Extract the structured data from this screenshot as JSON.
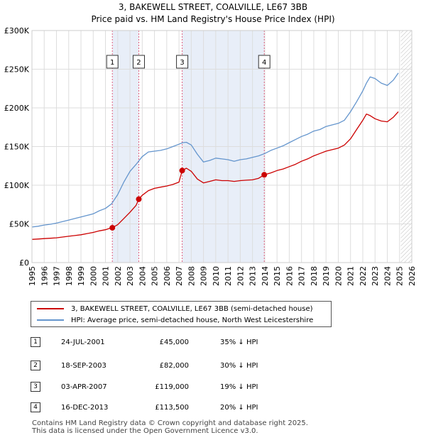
{
  "title_line1": "3, BAKEWELL STREET, COALVILLE, LE67 3BB",
  "title_line2": "Price paid vs. HM Land Registry's House Price Index (HPI)",
  "chart_data": {
    "type": "line",
    "xlim": [
      1995,
      2026
    ],
    "ylim": [
      0,
      300000
    ],
    "y_ticks": [
      0,
      50000,
      100000,
      150000,
      200000,
      250000,
      300000
    ],
    "y_tick_labels": [
      "£0",
      "£50K",
      "£100K",
      "£150K",
      "£200K",
      "£250K",
      "£300K"
    ],
    "x_ticks": [
      1995,
      1996,
      1997,
      1998,
      1999,
      2000,
      2001,
      2002,
      2003,
      2004,
      2005,
      2006,
      2007,
      2008,
      2009,
      2010,
      2011,
      2012,
      2013,
      2014,
      2015,
      2016,
      2017,
      2018,
      2019,
      2020,
      2021,
      2022,
      2023,
      2024,
      2025,
      2026
    ],
    "grid": true,
    "future_start": 2025.1,
    "series": [
      {
        "name": "HPI: Average price, semi-detached house, North West Leicestershire",
        "color": "#6495cd",
        "x": [
          1995.0,
          1995.5,
          1996.0,
          1996.5,
          1997.0,
          1997.5,
          1998.0,
          1998.5,
          1999.0,
          1999.5,
          2000.0,
          2000.5,
          2001.0,
          2001.5,
          2002.0,
          2002.5,
          2003.0,
          2003.5,
          2004.0,
          2004.5,
          2005.0,
          2005.5,
          2006.0,
          2006.5,
          2007.0,
          2007.3,
          2007.6,
          2008.0,
          2008.5,
          2009.0,
          2009.5,
          2010.0,
          2010.5,
          2011.0,
          2011.5,
          2012.0,
          2012.5,
          2013.0,
          2013.5,
          2014.0,
          2014.5,
          2015.0,
          2015.5,
          2016.0,
          2016.5,
          2017.0,
          2017.5,
          2018.0,
          2018.5,
          2019.0,
          2019.5,
          2020.0,
          2020.5,
          2021.0,
          2021.5,
          2022.0,
          2022.3,
          2022.6,
          2023.0,
          2023.5,
          2024.0,
          2024.5,
          2024.9
        ],
        "values": [
          46000,
          47000,
          48500,
          49500,
          51000,
          53000,
          55000,
          57000,
          59000,
          61000,
          63000,
          67000,
          70000,
          76000,
          88000,
          104000,
          118000,
          127000,
          137000,
          143000,
          144000,
          145000,
          147000,
          150000,
          153000,
          155000,
          155500,
          152000,
          140000,
          130000,
          132000,
          135000,
          134000,
          133000,
          131000,
          133000,
          134000,
          136000,
          138000,
          141000,
          145000,
          148000,
          151000,
          155000,
          159000,
          163000,
          166000,
          170000,
          172000,
          176000,
          178000,
          180000,
          184000,
          195000,
          208000,
          222000,
          232000,
          240000,
          238000,
          232000,
          229000,
          236000,
          245000
        ]
      },
      {
        "name": "3, BAKEWELL STREET, COALVILLE, LE67 3BB (semi-detached house)",
        "color": "#cc0000",
        "x": [
          1995.0,
          1995.5,
          1996.0,
          1996.5,
          1997.0,
          1997.5,
          1998.0,
          1998.5,
          1999.0,
          1999.5,
          2000.0,
          2000.5,
          2001.0,
          2001.3,
          2001.56,
          2002.0,
          2002.5,
          2003.0,
          2003.5,
          2003.72,
          2004.0,
          2004.5,
          2005.0,
          2005.5,
          2006.0,
          2006.5,
          2007.0,
          2007.26,
          2007.6,
          2008.0,
          2008.5,
          2009.0,
          2009.5,
          2010.0,
          2010.5,
          2011.0,
          2011.5,
          2012.0,
          2012.5,
          2013.0,
          2013.5,
          2013.96,
          2014.5,
          2015.0,
          2015.5,
          2016.0,
          2016.5,
          2017.0,
          2017.5,
          2018.0,
          2018.5,
          2019.0,
          2019.5,
          2020.0,
          2020.5,
          2021.0,
          2021.5,
          2022.0,
          2022.3,
          2022.6,
          2023.0,
          2023.5,
          2024.0,
          2024.5,
          2024.9
        ],
        "values": [
          30000,
          30500,
          31000,
          31500,
          32000,
          33000,
          34000,
          35000,
          36000,
          37500,
          39000,
          41000,
          42500,
          44000,
          45000,
          49000,
          57000,
          65000,
          74000,
          82000,
          87000,
          93000,
          96000,
          97500,
          99000,
          101000,
          104000,
          119000,
          122000,
          118000,
          108000,
          103000,
          105000,
          107000,
          106000,
          106000,
          105000,
          106000,
          106500,
          107000,
          109000,
          113500,
          116000,
          119000,
          121000,
          124000,
          127000,
          131000,
          134000,
          138000,
          141000,
          144000,
          146000,
          148000,
          152000,
          160000,
          172000,
          184000,
          192000,
          190000,
          186000,
          183000,
          182000,
          188000,
          195000
        ]
      }
    ],
    "markers": [
      {
        "label": "1",
        "x": 2001.56,
        "value": 45000
      },
      {
        "label": "2",
        "x": 2003.72,
        "value": 82000
      },
      {
        "label": "3",
        "x": 2007.26,
        "value": 119000
      },
      {
        "label": "4",
        "x": 2013.96,
        "value": 113500
      }
    ],
    "shaded_ranges": [
      [
        2001.56,
        2003.72
      ],
      [
        2007.26,
        2013.96
      ]
    ]
  },
  "legend": {
    "property": "3, BAKEWELL STREET, COALVILLE, LE67 3BB (semi-detached house)",
    "hpi": "HPI: Average price, semi-detached house, North West Leicestershire",
    "property_color": "#cc0000",
    "hpi_color": "#6495cd"
  },
  "sales": [
    {
      "num": "1",
      "date": "24-JUL-2001",
      "price": "£45,000",
      "hpi": "35% ↓ HPI"
    },
    {
      "num": "2",
      "date": "18-SEP-2003",
      "price": "£82,000",
      "hpi": "30% ↓ HPI"
    },
    {
      "num": "3",
      "date": "03-APR-2007",
      "price": "£119,000",
      "hpi": "19% ↓ HPI"
    },
    {
      "num": "4",
      "date": "16-DEC-2013",
      "price": "£113,500",
      "hpi": "20% ↓ HPI"
    }
  ],
  "footer": {
    "line1": "Contains HM Land Registry data © Crown copyright and database right 2025.",
    "line2": "This data is licensed under the Open Government Licence v3.0."
  }
}
